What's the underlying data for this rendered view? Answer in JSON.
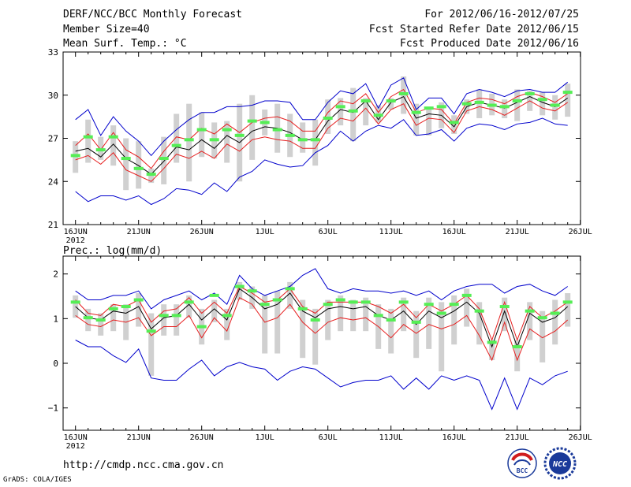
{
  "header": {
    "title": "DERF/NCC/BCC Monthly Forecast",
    "member_size": "Member Size=40",
    "variable": "Mean Surf. Temp.: °C",
    "forecast_period": "For 2012/06/16-2012/07/25",
    "started_refer_date": "Fcst Started Refer Date 2012/06/15",
    "produced_date": "Fcst Produced Date 2012/06/16"
  },
  "footer": {
    "url": "http://cmdp.ncc.cma.gov.cn",
    "grads_credit": "GrADS: COLA/IGES",
    "logo_bcc": "BCC",
    "logo_ncc": "NCC"
  },
  "colors": {
    "ensemble_mean": "#000000",
    "spread_band": "#e61e1e",
    "min_max": "#0000cc",
    "member_range_bar": "#d0d0d0",
    "marker": "#55ee55"
  },
  "chart_data": [
    {
      "type": "line",
      "title": "Mean Surf. Temp.: °C",
      "x_days": [
        0,
        1,
        2,
        3,
        4,
        5,
        6,
        7,
        8,
        9,
        10,
        11,
        12,
        13,
        14,
        15,
        16,
        17,
        18,
        19,
        20,
        21,
        22,
        23,
        24,
        25,
        26,
        27,
        28,
        29,
        30,
        31,
        32,
        33,
        34,
        35,
        36,
        37,
        38,
        39
      ],
      "x_tick_labels": [
        "16JUN",
        "21JUN",
        "26JUN",
        "1JUL",
        "6JUL",
        "11JUL",
        "16JUL",
        "21JUL",
        "26JUL"
      ],
      "x_year_label": "2012",
      "ylim": [
        21,
        33
      ],
      "y_ticks": [
        21,
        24,
        27,
        30,
        33
      ],
      "series": [
        {
          "name": "max",
          "values": [
            28.3,
            29.0,
            27.2,
            28.5,
            27.5,
            26.8,
            25.8,
            26.8,
            27.6,
            28.3,
            28.8,
            28.8,
            29.2,
            29.2,
            29.3,
            29.6,
            29.6,
            29.5,
            28.3,
            28.3,
            29.5,
            30.3,
            30.1,
            30.8,
            29.1,
            30.7,
            31.2,
            29.0,
            29.8,
            29.8,
            28.7,
            30.1,
            30.4,
            30.2,
            29.9,
            30.3,
            30.4,
            30.2,
            30.2,
            30.9
          ]
        },
        {
          "name": "upper",
          "values": [
            26.5,
            27.3,
            26.2,
            27.4,
            26.2,
            25.7,
            24.9,
            26.1,
            27.1,
            26.9,
            27.7,
            27.3,
            28.0,
            27.4,
            28.1,
            28.4,
            28.5,
            28.2,
            27.5,
            27.5,
            28.8,
            29.6,
            29.4,
            30.1,
            28.8,
            29.9,
            30.4,
            28.8,
            29.1,
            29.0,
            28.0,
            29.5,
            29.8,
            29.7,
            29.4,
            29.9,
            30.2,
            29.9,
            29.5,
            30.1
          ]
        },
        {
          "name": "mean",
          "values": [
            26.1,
            26.3,
            25.7,
            26.6,
            25.6,
            25.1,
            24.5,
            25.4,
            26.4,
            26.2,
            26.9,
            26.3,
            27.2,
            26.7,
            27.5,
            27.8,
            27.7,
            27.4,
            26.9,
            26.9,
            28.2,
            29.0,
            28.8,
            29.6,
            28.3,
            29.5,
            29.9,
            28.4,
            28.7,
            28.6,
            27.8,
            29.2,
            29.5,
            29.3,
            29.1,
            29.5,
            29.9,
            29.5,
            29.2,
            29.8
          ]
        },
        {
          "name": "lower",
          "values": [
            25.5,
            25.8,
            25.2,
            26.0,
            24.8,
            24.4,
            24.0,
            24.9,
            25.9,
            25.6,
            26.1,
            25.6,
            26.6,
            26.1,
            26.9,
            27.1,
            26.9,
            26.8,
            26.3,
            26.3,
            27.7,
            28.4,
            28.2,
            29.1,
            28.0,
            29.0,
            29.4,
            27.9,
            28.4,
            28.3,
            27.4,
            28.9,
            29.2,
            29.0,
            28.6,
            29.1,
            29.6,
            29.1,
            28.9,
            29.5
          ]
        },
        {
          "name": "min",
          "values": [
            23.3,
            22.6,
            23.0,
            23.0,
            22.7,
            23.0,
            22.4,
            22.8,
            23.5,
            23.4,
            23.1,
            23.9,
            23.3,
            24.3,
            24.7,
            25.5,
            25.2,
            25.0,
            25.1,
            26.0,
            26.5,
            27.5,
            26.8,
            27.5,
            27.9,
            27.7,
            28.3,
            27.2,
            27.3,
            27.6,
            26.8,
            27.7,
            28.0,
            27.9,
            27.6,
            28.0,
            28.1,
            28.4,
            28.0,
            27.9
          ]
        },
        {
          "name": "member_high",
          "values": [
            26.8,
            28.3,
            27.1,
            27.9,
            27.0,
            26.8,
            24.9,
            27.1,
            28.7,
            29.4,
            28.8,
            28.1,
            28.2,
            29.4,
            30.0,
            29.0,
            29.4,
            28.7,
            28.1,
            28.3,
            29.7,
            29.8,
            30.5,
            29.8,
            29.3,
            29.8,
            31.3,
            29.4,
            29.2,
            29.5,
            28.6,
            29.7,
            30.4,
            30.1,
            29.7,
            30.4,
            30.3,
            30.2,
            30.0,
            30.8
          ]
        },
        {
          "name": "member_low",
          "values": [
            24.6,
            25.3,
            25.5,
            25.1,
            23.4,
            23.5,
            23.9,
            23.8,
            25.3,
            24.0,
            25.7,
            25.6,
            25.3,
            24.0,
            25.5,
            27.2,
            26.0,
            25.7,
            26.0,
            25.1,
            27.3,
            27.9,
            26.8,
            27.9,
            28.1,
            29.0,
            28.7,
            27.2,
            27.2,
            27.7,
            27.3,
            28.7,
            28.4,
            28.6,
            28.4,
            28.2,
            28.9,
            28.6,
            28.3,
            28.5
          ]
        },
        {
          "name": "marker",
          "values": [
            25.8,
            27.1,
            26.2,
            27.1,
            25.6,
            24.9,
            24.5,
            25.6,
            26.5,
            26.9,
            27.6,
            26.9,
            27.6,
            27.2,
            28.2,
            28.1,
            27.6,
            27.2,
            26.9,
            26.9,
            28.4,
            29.2,
            28.9,
            29.6,
            28.6,
            29.6,
            30.1,
            28.8,
            29.1,
            29.2,
            28.1,
            29.4,
            29.5,
            29.3,
            29.2,
            29.6,
            30.1,
            29.7,
            29.3,
            30.2
          ]
        }
      ]
    },
    {
      "type": "line",
      "title": "Prec.: log(mm/d)",
      "x_days": [
        0,
        1,
        2,
        3,
        4,
        5,
        6,
        7,
        8,
        9,
        10,
        11,
        12,
        13,
        14,
        15,
        16,
        17,
        18,
        19,
        20,
        21,
        22,
        23,
        24,
        25,
        26,
        27,
        28,
        29,
        30,
        31,
        32,
        33,
        34,
        35,
        36,
        37,
        38,
        39
      ],
      "x_tick_labels": [
        "16JUN",
        "21JUN",
        "26JUN",
        "1JUL",
        "6JUL",
        "11JUL",
        "16JUL",
        "21JUL",
        "26JUL"
      ],
      "x_year_label": "2012",
      "ylim": [
        -1.5,
        2.4
      ],
      "y_ticks": [
        -1,
        0,
        1,
        2
      ],
      "series": [
        {
          "name": "max",
          "values": [
            1.62,
            1.42,
            1.42,
            1.52,
            1.52,
            1.62,
            1.22,
            1.42,
            1.52,
            1.62,
            1.42,
            1.57,
            1.32,
            1.97,
            1.67,
            1.52,
            1.62,
            1.72,
            1.97,
            2.12,
            1.67,
            1.57,
            1.67,
            1.62,
            1.62,
            1.57,
            1.62,
            1.52,
            1.62,
            1.42,
            1.62,
            1.72,
            1.77,
            1.77,
            1.57,
            1.72,
            1.77,
            1.62,
            1.52,
            1.72
          ]
        },
        {
          "name": "upper",
          "values": [
            1.42,
            1.12,
            1.07,
            1.32,
            1.27,
            1.42,
            0.92,
            1.17,
            1.22,
            1.47,
            1.12,
            1.37,
            1.12,
            1.72,
            1.57,
            1.37,
            1.42,
            1.67,
            1.27,
            1.12,
            1.37,
            1.37,
            1.37,
            1.37,
            1.27,
            1.12,
            1.32,
            1.02,
            1.32,
            1.17,
            1.32,
            1.52,
            1.22,
            0.52,
            1.37,
            0.52,
            1.27,
            1.02,
            1.17,
            1.37
          ]
        },
        {
          "name": "mean",
          "values": [
            1.27,
            1.02,
            0.97,
            1.17,
            1.12,
            1.27,
            0.77,
            1.02,
            1.07,
            1.32,
            0.97,
            1.22,
            0.97,
            1.67,
            1.47,
            1.22,
            1.32,
            1.57,
            1.17,
            1.02,
            1.22,
            1.27,
            1.22,
            1.27,
            1.07,
            0.97,
            1.17,
            0.87,
            1.17,
            1.02,
            1.17,
            1.37,
            1.12,
            0.37,
            1.17,
            0.37,
            1.12,
            0.92,
            1.02,
            1.27
          ]
        },
        {
          "name": "lower",
          "values": [
            1.07,
            0.87,
            0.82,
            0.97,
            0.92,
            1.02,
            0.62,
            0.82,
            0.82,
            1.07,
            0.57,
            1.02,
            0.72,
            1.47,
            1.32,
            0.92,
            1.02,
            1.32,
            0.92,
            0.67,
            0.92,
            1.02,
            0.97,
            1.02,
            0.82,
            0.57,
            0.87,
            0.67,
            0.87,
            0.77,
            0.87,
            1.07,
            0.62,
            0.07,
            0.92,
            0.07,
            0.77,
            0.57,
            0.72,
            0.97
          ]
        },
        {
          "name": "min",
          "values": [
            0.52,
            0.37,
            0.37,
            0.17,
            0.02,
            0.32,
            -0.33,
            -0.38,
            -0.38,
            -0.13,
            0.07,
            -0.28,
            -0.08,
            0.02,
            -0.08,
            -0.13,
            -0.38,
            -0.18,
            -0.08,
            -0.13,
            -0.33,
            -0.53,
            -0.43,
            -0.38,
            -0.38,
            -0.28,
            -0.58,
            -0.33,
            -0.58,
            -0.28,
            -0.38,
            -0.28,
            -0.38,
            -1.03,
            -0.33,
            -1.03,
            -0.33,
            -0.48,
            -0.28,
            -0.18
          ]
        },
        {
          "name": "member_high",
          "values": [
            1.52,
            1.22,
            1.12,
            1.32,
            1.32,
            1.57,
            1.12,
            1.32,
            1.32,
            1.52,
            1.22,
            1.42,
            1.22,
            1.82,
            1.72,
            1.52,
            1.62,
            1.82,
            1.42,
            1.22,
            1.42,
            1.52,
            1.42,
            1.47,
            1.32,
            1.22,
            1.47,
            1.17,
            1.47,
            1.37,
            1.52,
            1.67,
            1.37,
            0.52,
            1.47,
            0.52,
            1.37,
            1.17,
            1.42,
            1.57
          ]
        },
        {
          "name": "member_low",
          "values": [
            1.02,
            0.72,
            0.62,
            0.72,
            0.52,
            0.82,
            -0.28,
            0.62,
            0.62,
            1.02,
            0.42,
            0.92,
            0.52,
            1.42,
            1.22,
            0.22,
            0.22,
            1.22,
            0.12,
            -0.03,
            0.52,
            0.72,
            0.72,
            0.72,
            0.32,
            0.22,
            0.72,
            0.12,
            0.32,
            -0.18,
            0.42,
            0.82,
            0.42,
            0.07,
            0.72,
            -0.18,
            0.52,
            0.02,
            0.42,
            0.82
          ]
        },
        {
          "name": "marker",
          "values": [
            1.37,
            1.02,
            0.97,
            1.22,
            1.27,
            1.42,
            0.72,
            1.07,
            1.07,
            1.37,
            0.82,
            1.52,
            1.07,
            1.72,
            1.62,
            1.32,
            1.42,
            1.67,
            1.22,
            0.97,
            1.32,
            1.42,
            1.37,
            1.37,
            1.07,
            0.97,
            1.37,
            0.92,
            1.32,
            1.12,
            1.32,
            1.52,
            1.17,
            0.47,
            1.27,
            0.37,
            1.17,
            1.02,
            1.12,
            1.37
          ]
        }
      ]
    }
  ]
}
